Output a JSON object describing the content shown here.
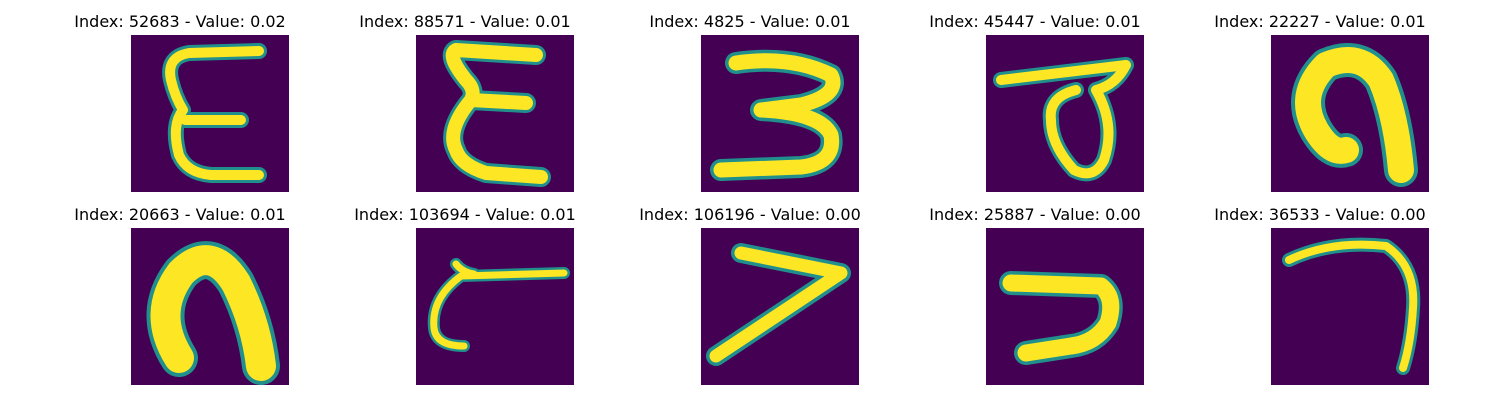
{
  "colors": {
    "background": "#440154",
    "mid": "#21908c",
    "high": "#fde725"
  },
  "panels": [
    {
      "title": "Index: 52683 - Value: 0.02",
      "glyph": "handwritten-epsilon"
    },
    {
      "title": "Index: 88571 - Value: 0.01",
      "glyph": "handwritten-sigma"
    },
    {
      "title": "Index: 4825 - Value: 0.01",
      "glyph": "handwritten-three"
    },
    {
      "title": "Index: 45447 - Value: 0.01",
      "glyph": "handwritten-loop-bar"
    },
    {
      "title": "Index: 22227 - Value: 0.01",
      "glyph": "handwritten-hook"
    },
    {
      "title": "Index: 20663 - Value: 0.01",
      "glyph": "handwritten-n"
    },
    {
      "title": "Index: 103694 - Value: 0.01",
      "glyph": "handwritten-curl"
    },
    {
      "title": "Index: 106196 - Value: 0.00",
      "glyph": "handwritten-seven"
    },
    {
      "title": "Index: 25887 - Value: 0.00",
      "glyph": "handwritten-hook-seven"
    },
    {
      "title": "Index: 36533 - Value: 0.00",
      "glyph": "handwritten-arc"
    }
  ]
}
